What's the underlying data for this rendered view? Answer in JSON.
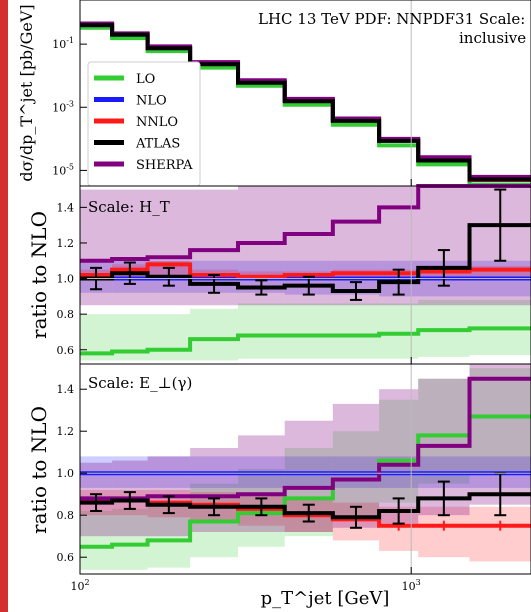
{
  "figure": {
    "title": "LHC 13 TeV PDF: NNPDF31 Scale: H_T",
    "subtitle": "inclusive",
    "xlabel": "p_T^jet [GeV]",
    "x_scale": "log",
    "x_ticks": [
      {
        "value": 100,
        "label": "10^2"
      },
      {
        "value": 1000,
        "label": "10^3"
      }
    ],
    "accent_bar_color": "#d32f2f"
  },
  "chart_data": [
    {
      "type": "line",
      "panel": "spectrum",
      "ylabel": "dσ/dp_T^jet [pb/GeV]",
      "y_scale": "log",
      "ylim": [
        3.2e-06,
        2.5
      ],
      "y_ticks": [
        {
          "value": 0.1,
          "label": "10^-1"
        },
        {
          "value": 0.001,
          "label": "10^-3"
        },
        {
          "value": 1e-05,
          "label": "10^-5"
        }
      ],
      "xlim": [
        100,
        2300
      ],
      "bin_edges": [
        100,
        125,
        160,
        215,
        300,
        415,
        580,
        800,
        1050,
        1500,
        2300
      ],
      "legend": "upper left",
      "series": [
        {
          "name": "LO",
          "color": "#33cc33",
          "values": [
            0.33,
            0.155,
            0.06,
            0.018,
            0.0048,
            0.0012,
            0.00028,
            6.2e-05,
            1.55e-05,
            3.5e-06
          ]
        },
        {
          "name": "NLO",
          "color": "#1a1aff",
          "values": [
            0.4,
            0.2,
            0.075,
            0.024,
            0.0064,
            0.00163,
            0.00039,
            8.8e-05,
            2.15e-05,
            4.9e-06
          ]
        },
        {
          "name": "NNLO",
          "color": "#ff1a1a",
          "values": [
            0.41,
            0.205,
            0.077,
            0.025,
            0.0066,
            0.00168,
            0.0004,
            9e-05,
            2.2e-05,
            5e-06
          ]
        },
        {
          "name": "ATLAS",
          "color": "#000000",
          "values": [
            0.4,
            0.2,
            0.074,
            0.023,
            0.006,
            0.00155,
            0.00037,
            8.6e-05,
            2.05e-05,
            5.2e-06
          ]
        },
        {
          "name": "SHERPA",
          "color": "#800080",
          "values": [
            0.45,
            0.22,
            0.085,
            0.027,
            0.0072,
            0.00185,
            0.00044,
            0.0001,
            2.6e-05,
            6.2e-06
          ]
        }
      ]
    },
    {
      "type": "line",
      "panel": "ratio-HT",
      "annotation": "Scale: H_T",
      "ylabel": "ratio to NLO",
      "ylim": [
        0.52,
        1.52
      ],
      "y_ticks": [
        0.6,
        0.8,
        1.0,
        1.2,
        1.4
      ],
      "bin_edges": [
        100,
        125,
        160,
        215,
        300,
        415,
        580,
        800,
        1050,
        1500,
        2300
      ],
      "series": [
        {
          "name": "LO",
          "color": "#33cc33",
          "values": [
            0.58,
            0.59,
            0.6,
            0.66,
            0.68,
            0.68,
            0.68,
            0.69,
            0.71,
            0.72
          ],
          "band": [
            [
              0.54,
              0.8
            ],
            [
              0.54,
              0.8
            ],
            [
              0.54,
              0.8
            ],
            [
              0.54,
              0.83
            ],
            [
              0.55,
              0.86
            ],
            [
              0.55,
              0.86
            ],
            [
              0.55,
              0.86
            ],
            [
              0.55,
              0.86
            ],
            [
              0.56,
              0.88
            ],
            [
              0.57,
              0.88
            ]
          ]
        },
        {
          "name": "NLO",
          "color": "#1a1aff",
          "values": [
            1.0,
            1.0,
            1.0,
            1.0,
            1.0,
            1.0,
            1.0,
            1.0,
            1.0,
            1.0
          ],
          "band": [
            [
              0.92,
              1.1
            ],
            [
              0.92,
              1.1
            ],
            [
              0.92,
              1.1
            ],
            [
              0.92,
              1.1
            ],
            [
              0.92,
              1.1
            ],
            [
              0.91,
              1.1
            ],
            [
              0.91,
              1.1
            ],
            [
              0.9,
              1.1
            ],
            [
              0.9,
              1.1
            ],
            [
              0.9,
              1.1
            ]
          ]
        },
        {
          "name": "NNLO",
          "color": "#ff1a1a",
          "values": [
            1.02,
            1.05,
            1.08,
            1.02,
            1.01,
            1.02,
            1.03,
            1.03,
            1.04,
            1.05
          ],
          "band": [
            [
              1.0,
              1.05
            ],
            [
              1.0,
              1.08
            ],
            [
              1.0,
              1.1
            ],
            [
              0.99,
              1.05
            ],
            [
              0.99,
              1.04
            ],
            [
              0.99,
              1.04
            ],
            [
              0.99,
              1.05
            ],
            [
              0.99,
              1.05
            ],
            [
              0.99,
              1.06
            ],
            [
              0.99,
              1.07
            ]
          ]
        },
        {
          "name": "ATLAS",
          "color": "#000000",
          "values": [
            1.0,
            1.03,
            1.01,
            0.97,
            0.95,
            0.96,
            0.93,
            0.98,
            1.06,
            1.3
          ],
          "errors": [
            0.06,
            0.06,
            0.05,
            0.05,
            0.04,
            0.05,
            0.05,
            0.07,
            0.1,
            0.2
          ]
        },
        {
          "name": "SHERPA",
          "color": "#800080",
          "values": [
            1.1,
            1.11,
            1.12,
            1.16,
            1.2,
            1.25,
            1.32,
            1.4,
            1.52,
            1.52
          ],
          "band": [
            [
              0.85,
              1.5
            ],
            [
              0.85,
              1.5
            ],
            [
              0.85,
              1.5
            ],
            [
              0.85,
              1.5
            ],
            [
              0.85,
              1.52
            ],
            [
              0.85,
              1.52
            ],
            [
              0.85,
              1.52
            ],
            [
              0.85,
              1.52
            ],
            [
              0.85,
              1.52
            ],
            [
              0.85,
              1.52
            ]
          ]
        }
      ]
    },
    {
      "type": "line",
      "panel": "ratio-Eperp",
      "annotation": "Scale: E_⊥(γ)",
      "ylabel": "ratio to NLO",
      "ylim": [
        0.52,
        1.52
      ],
      "y_ticks": [
        0.6,
        0.8,
        1.0,
        1.2,
        1.4
      ],
      "bin_edges": [
        100,
        125,
        160,
        215,
        300,
        415,
        580,
        800,
        1050,
        1500,
        2300
      ],
      "series": [
        {
          "name": "LO",
          "color": "#33cc33",
          "values": [
            0.65,
            0.66,
            0.68,
            0.77,
            0.81,
            0.88,
            0.97,
            1.06,
            1.18,
            1.27
          ],
          "band": [
            [
              0.54,
              0.82
            ],
            [
              0.54,
              0.83
            ],
            [
              0.55,
              0.85
            ],
            [
              0.6,
              0.95
            ],
            [
              0.65,
              1.02
            ],
            [
              0.7,
              1.12
            ],
            [
              0.78,
              1.2
            ],
            [
              0.86,
              1.35
            ],
            [
              0.95,
              1.45
            ],
            [
              1.0,
              1.5
            ]
          ]
        },
        {
          "name": "NLO",
          "color": "#1a1aff",
          "values": [
            1.0,
            1.0,
            1.0,
            1.0,
            1.0,
            1.0,
            1.0,
            1.0,
            1.0,
            1.0
          ],
          "band": [
            [
              0.93,
              1.08
            ],
            [
              0.93,
              1.08
            ],
            [
              0.93,
              1.08
            ],
            [
              0.93,
              1.08
            ],
            [
              0.93,
              1.08
            ],
            [
              0.93,
              1.08
            ],
            [
              0.93,
              1.08
            ],
            [
              0.93,
              1.08
            ],
            [
              0.93,
              1.08
            ],
            [
              0.93,
              1.08
            ]
          ]
        },
        {
          "name": "NNLO",
          "color": "#ff1a1a",
          "values": [
            0.87,
            0.87,
            0.86,
            0.85,
            0.83,
            0.8,
            0.78,
            0.75,
            0.75,
            0.75
          ],
          "band": [
            [
              0.8,
              0.92
            ],
            [
              0.8,
              0.92
            ],
            [
              0.79,
              0.92
            ],
            [
              0.77,
              0.91
            ],
            [
              0.75,
              0.9
            ],
            [
              0.72,
              0.88
            ],
            [
              0.68,
              0.86
            ],
            [
              0.63,
              0.84
            ],
            [
              0.6,
              0.84
            ],
            [
              0.58,
              0.84
            ]
          ]
        },
        {
          "name": "ATLAS",
          "color": "#000000",
          "values": [
            0.86,
            0.87,
            0.85,
            0.84,
            0.84,
            0.81,
            0.79,
            0.82,
            0.88,
            0.9
          ],
          "errors": [
            0.04,
            0.04,
            0.04,
            0.04,
            0.04,
            0.04,
            0.05,
            0.06,
            0.08,
            0.1
          ]
        },
        {
          "name": "SHERPA",
          "color": "#800080",
          "values": [
            0.88,
            0.88,
            0.89,
            0.89,
            0.9,
            0.93,
            0.97,
            1.04,
            1.13,
            1.45
          ],
          "band": [
            [
              0.7,
              1.05
            ],
            [
              0.7,
              1.06
            ],
            [
              0.7,
              1.08
            ],
            [
              0.72,
              1.12
            ],
            [
              0.72,
              1.18
            ],
            [
              0.72,
              1.25
            ],
            [
              0.74,
              1.33
            ],
            [
              0.76,
              1.4
            ],
            [
              0.8,
              1.45
            ],
            [
              0.85,
              1.52
            ]
          ]
        }
      ]
    }
  ]
}
